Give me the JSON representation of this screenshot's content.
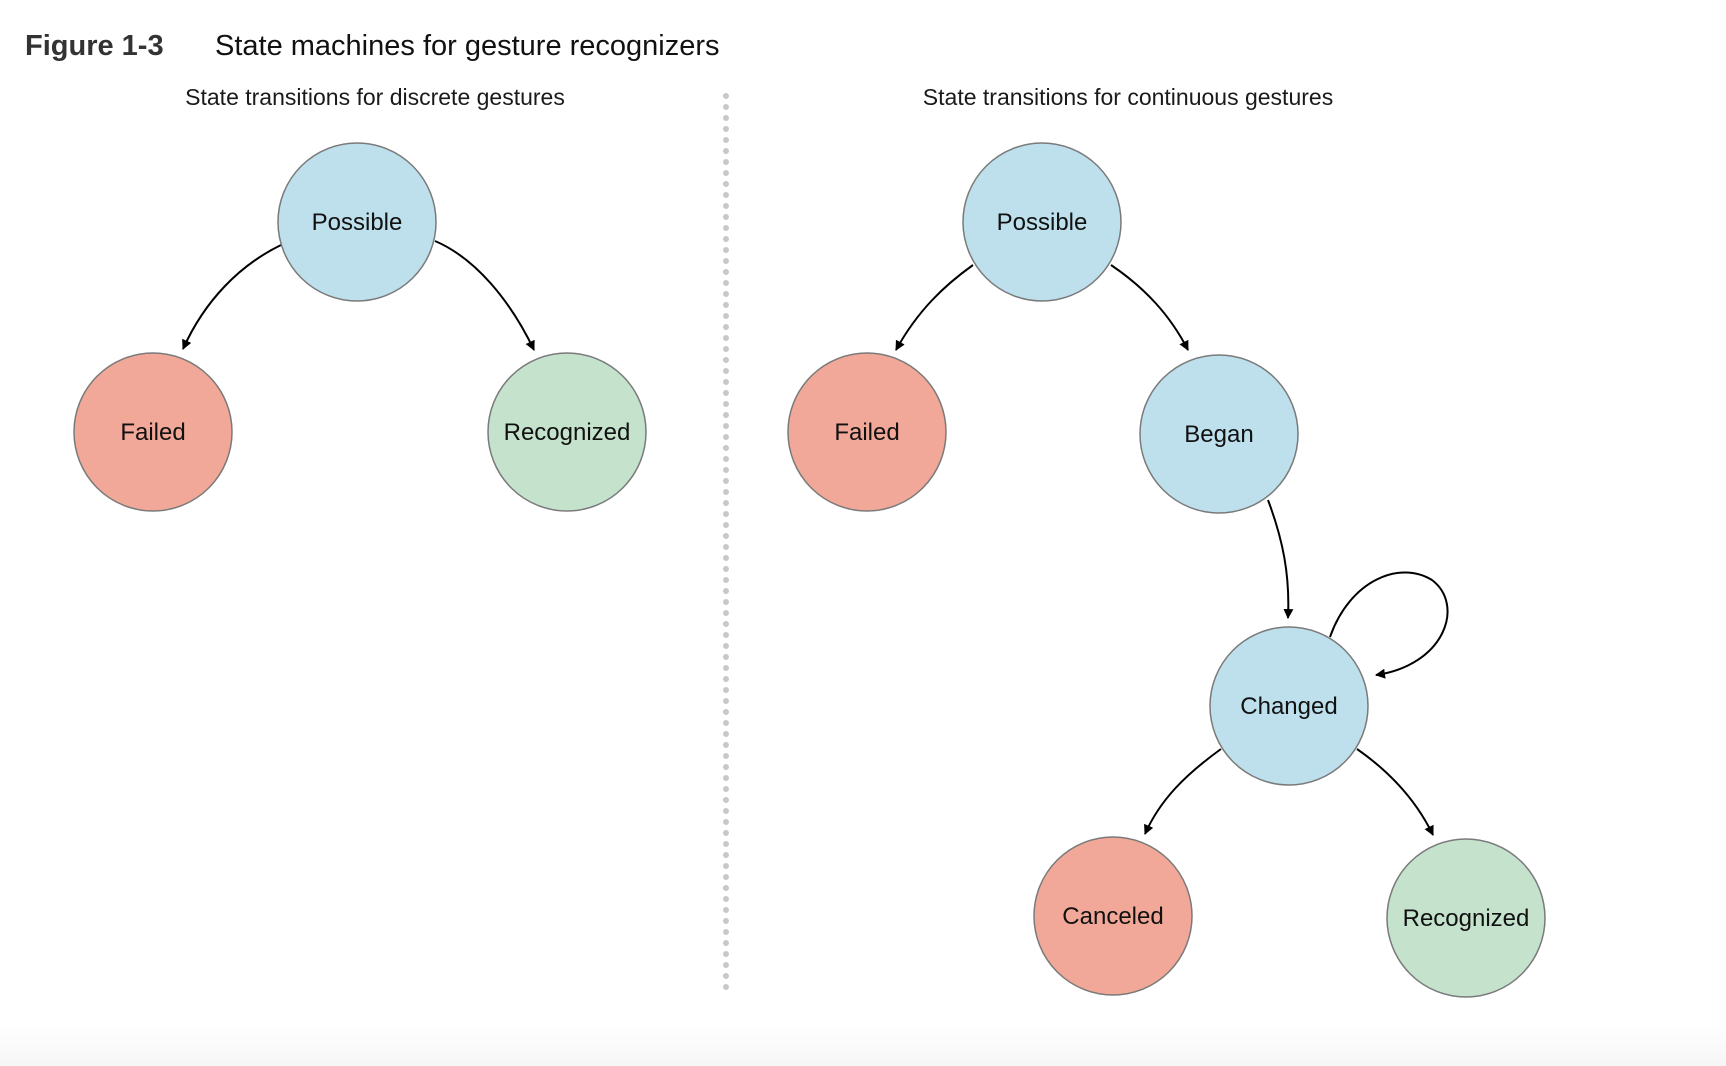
{
  "figure": {
    "number": "Figure 1-3",
    "title": "State machines for gesture recognizers"
  },
  "colors": {
    "possible_state": "#bde0ec",
    "failed_state": "#f2a898",
    "recognized_state": "#c4e2cc",
    "outline": "#7a7a7a",
    "edge": "#000000",
    "divider": "#c8c8c8"
  },
  "panels": {
    "discrete": {
      "title": "State transitions for discrete gestures",
      "nodes": {
        "possible": {
          "label": "Possible",
          "kind": "possible_state"
        },
        "failed": {
          "label": "Failed",
          "kind": "failed_state"
        },
        "recognized": {
          "label": "Recognized",
          "kind": "recognized_state"
        }
      },
      "edges": [
        {
          "from": "Possible",
          "to": "Failed"
        },
        {
          "from": "Possible",
          "to": "Recognized"
        }
      ]
    },
    "continuous": {
      "title": "State transitions for continuous gestures",
      "nodes": {
        "possible": {
          "label": "Possible",
          "kind": "possible_state"
        },
        "failed": {
          "label": "Failed",
          "kind": "failed_state"
        },
        "began": {
          "label": "Began",
          "kind": "possible_state"
        },
        "changed": {
          "label": "Changed",
          "kind": "possible_state"
        },
        "canceled": {
          "label": "Canceled",
          "kind": "failed_state"
        },
        "recognized": {
          "label": "Recognized",
          "kind": "recognized_state"
        }
      },
      "edges": [
        {
          "from": "Possible",
          "to": "Failed"
        },
        {
          "from": "Possible",
          "to": "Began"
        },
        {
          "from": "Began",
          "to": "Changed"
        },
        {
          "from": "Changed",
          "to": "Changed"
        },
        {
          "from": "Changed",
          "to": "Canceled"
        },
        {
          "from": "Changed",
          "to": "Recognized"
        }
      ]
    }
  }
}
